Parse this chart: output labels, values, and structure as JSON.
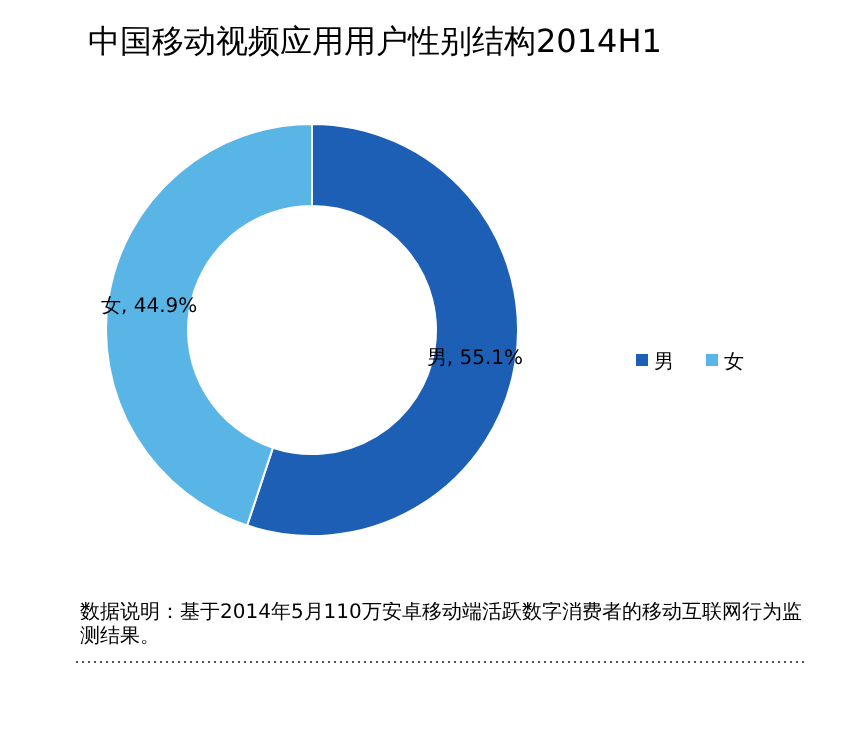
{
  "chart_data": {
    "type": "donut",
    "title": "中国移动视频应用用户性别结构2014H1",
    "categories": [
      "男",
      "女"
    ],
    "values": [
      55.1,
      44.9
    ],
    "colors": [
      "#1c5fb5",
      "#58b5e6"
    ],
    "value_labels": [
      "男, 55.1%",
      "女, 44.9%"
    ],
    "legend": "right",
    "annotations": [
      "数据说明：基于2014年5月110万安卓移动端活跃数字消费者的移动互联网行为监测结果。"
    ]
  }
}
